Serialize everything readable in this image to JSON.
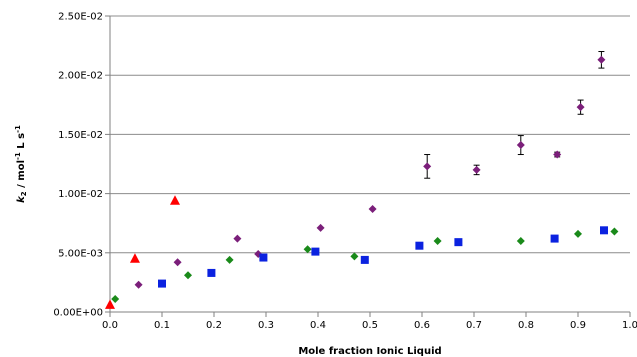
{
  "chart_data": {
    "type": "scatter",
    "title": "",
    "xlabel": "Mole fraction Ionic Liquid",
    "ylabel": {
      "k_part": "k",
      "sub": "2",
      "mid": " / mol",
      "sup1": "-1",
      "l_part": " L s",
      "sup2": "-1"
    },
    "xlim": [
      0,
      1.0
    ],
    "ylim": [
      0,
      0.025
    ],
    "x_ticks": [
      {
        "value": 0.0,
        "label": "0.0"
      },
      {
        "value": 0.1,
        "label": "0.1"
      },
      {
        "value": 0.2,
        "label": "0.2"
      },
      {
        "value": 0.3,
        "label": "0.3"
      },
      {
        "value": 0.4,
        "label": "0.4"
      },
      {
        "value": 0.5,
        "label": "0.5"
      },
      {
        "value": 0.6,
        "label": "0.6"
      },
      {
        "value": 0.7,
        "label": "0.7"
      },
      {
        "value": 0.8,
        "label": "0.8"
      },
      {
        "value": 0.9,
        "label": "0.9"
      },
      {
        "value": 1.0,
        "label": "1.0"
      }
    ],
    "y_ticks": [
      {
        "value": 0.0,
        "label": "0.00E+00"
      },
      {
        "value": 0.005,
        "label": "5.00E-03"
      },
      {
        "value": 0.01,
        "label": "1.00E-02"
      },
      {
        "value": 0.015,
        "label": "1.50E-02"
      },
      {
        "value": 0.02,
        "label": "2.00E-02"
      },
      {
        "value": 0.025,
        "label": "2.50E-02"
      }
    ],
    "grid": "horizontal",
    "legend": "none",
    "series": [
      {
        "marker": "diamond",
        "color": "#7b1f7a",
        "points": [
          {
            "x": 0.055,
            "y": 0.0023
          },
          {
            "x": 0.13,
            "y": 0.0042
          },
          {
            "x": 0.245,
            "y": 0.0062
          },
          {
            "x": 0.285,
            "y": 0.0049
          },
          {
            "x": 0.405,
            "y": 0.0071
          },
          {
            "x": 0.505,
            "y": 0.0087
          },
          {
            "x": 0.61,
            "y": 0.0123,
            "err": 0.001
          },
          {
            "x": 0.705,
            "y": 0.012,
            "err": 0.0004
          },
          {
            "x": 0.79,
            "y": 0.0141,
            "err": 0.0008
          },
          {
            "x": 0.86,
            "y": 0.0133,
            "err": 0.0002
          },
          {
            "x": 0.905,
            "y": 0.0173,
            "err": 0.0006
          },
          {
            "x": 0.945,
            "y": 0.0213,
            "err": 0.0007
          }
        ]
      },
      {
        "marker": "diamond",
        "color": "#1a8a1a",
        "points": [
          {
            "x": 0.01,
            "y": 0.0011
          },
          {
            "x": 0.15,
            "y": 0.0031
          },
          {
            "x": 0.23,
            "y": 0.0044
          },
          {
            "x": 0.38,
            "y": 0.0053
          },
          {
            "x": 0.47,
            "y": 0.0047
          },
          {
            "x": 0.63,
            "y": 0.006
          },
          {
            "x": 0.79,
            "y": 0.006
          },
          {
            "x": 0.9,
            "y": 0.0066
          },
          {
            "x": 0.97,
            "y": 0.0068
          }
        ]
      },
      {
        "marker": "square",
        "color": "#0b22e0",
        "points": [
          {
            "x": 0.1,
            "y": 0.0024
          },
          {
            "x": 0.195,
            "y": 0.0033
          },
          {
            "x": 0.295,
            "y": 0.0046
          },
          {
            "x": 0.395,
            "y": 0.0051
          },
          {
            "x": 0.49,
            "y": 0.0044
          },
          {
            "x": 0.595,
            "y": 0.0056
          },
          {
            "x": 0.67,
            "y": 0.0059
          },
          {
            "x": 0.855,
            "y": 0.0062
          },
          {
            "x": 0.95,
            "y": 0.0069
          }
        ]
      },
      {
        "marker": "triangle",
        "color": "#ff0000",
        "points": [
          {
            "x": 0.0,
            "y": 0.0006
          },
          {
            "x": 0.048,
            "y": 0.0045
          },
          {
            "x": 0.125,
            "y": 0.0094
          }
        ]
      }
    ]
  }
}
